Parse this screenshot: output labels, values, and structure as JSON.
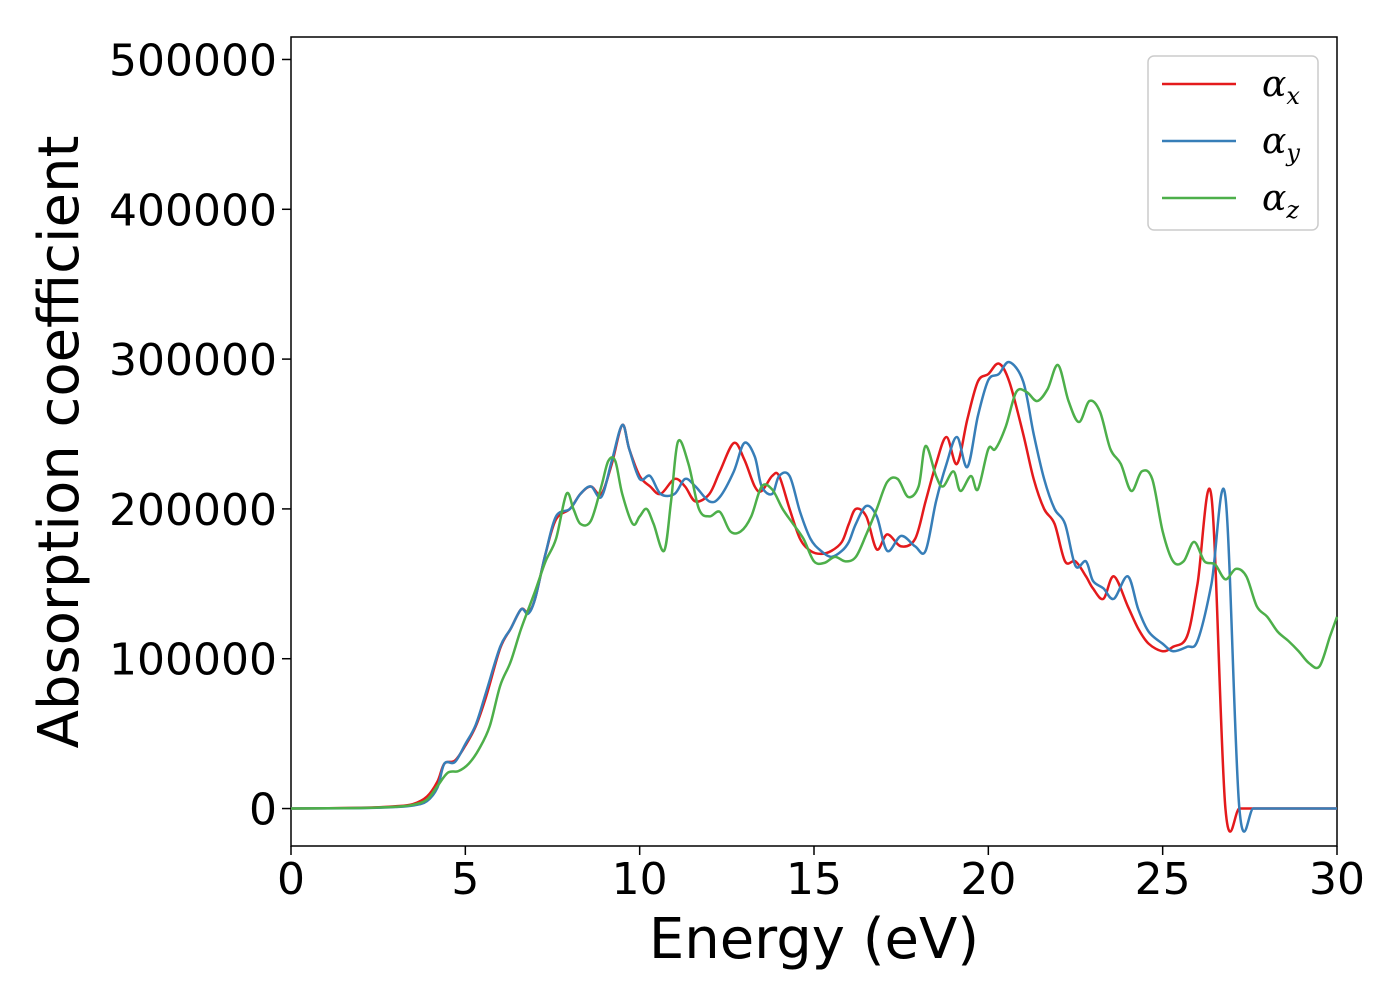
{
  "chart_data": {
    "type": "line",
    "xlabel": "Energy (eV)",
    "ylabel": "Absorption coefficient",
    "xlim": [
      0,
      30
    ],
    "ylim": [
      -25000,
      515000
    ],
    "xticks": [
      0,
      5,
      10,
      15,
      20,
      25,
      30
    ],
    "xtick_labels": [
      "0",
      "5",
      "10",
      "15",
      "20",
      "25",
      "30"
    ],
    "yticks": [
      0,
      100000,
      200000,
      300000,
      400000,
      500000
    ],
    "ytick_labels": [
      "0",
      "100000",
      "200000",
      "300000",
      "400000",
      "500000"
    ],
    "grid": false,
    "legend_position": "top-right",
    "colors": {
      "x": "#e41a1c",
      "y": "#377eb8",
      "z": "#4daf4a"
    },
    "series": [
      {
        "name": "α",
        "subscript": "x",
        "color": "#e41a1c",
        "x": [
          0,
          2,
          3,
          3.5,
          3.9,
          4.2,
          4.4,
          4.7,
          5,
          5.3,
          5.6,
          6,
          6.3,
          6.6,
          6.8,
          7,
          7.3,
          7.6,
          8,
          8.3,
          8.6,
          8.9,
          9.2,
          9.5,
          9.7,
          10,
          10.3,
          10.6,
          11,
          11.3,
          11.6,
          12,
          12.3,
          12.7,
          13,
          13.3,
          13.5,
          13.8,
          14,
          14.3,
          14.6,
          14.9,
          15.2,
          15.5,
          15.8,
          16,
          16.2,
          16.5,
          16.8,
          17.1,
          17.5,
          17.9,
          18.2,
          18.5,
          18.8,
          19.1,
          19.4,
          19.7,
          20,
          20.3,
          20.6,
          21,
          21.3,
          21.6,
          21.9,
          22.2,
          22.5,
          22.8,
          23,
          23.3,
          23.6,
          24,
          24.3,
          24.6,
          25,
          25.3,
          25.7,
          26,
          26.4,
          26.8,
          27.2,
          27.6,
          28,
          28.4,
          28.7,
          29,
          29.3,
          29.6,
          29.8,
          30
        ],
        "values": [
          0,
          500,
          1500,
          3000,
          8000,
          18000,
          30000,
          32000,
          42000,
          55000,
          75000,
          107000,
          120000,
          133000,
          131000,
          140000,
          170000,
          193000,
          200000,
          210000,
          215000,
          210000,
          230000,
          256000,
          240000,
          222000,
          215000,
          210000,
          220000,
          215000,
          205000,
          210000,
          225000,
          244000,
          233000,
          215000,
          212000,
          222000,
          222000,
          200000,
          180000,
          172000,
          170000,
          172000,
          178000,
          190000,
          200000,
          195000,
          173000,
          183000,
          175000,
          180000,
          205000,
          230000,
          248000,
          230000,
          260000,
          285000,
          290000,
          297000,
          285000,
          250000,
          220000,
          200000,
          190000,
          165000,
          165000,
          155000,
          147000,
          140000,
          155000,
          135000,
          120000,
          110000,
          105000,
          108000,
          115000,
          150000,
          208000,
          0,
          0,
          0,
          0,
          0,
          0,
          0,
          0,
          0,
          0,
          0
        ]
      },
      {
        "name": "α",
        "subscript": "y",
        "color": "#377eb8",
        "x": [
          0,
          2,
          3,
          3.5,
          3.9,
          4.2,
          4.4,
          4.7,
          5,
          5.3,
          5.6,
          6,
          6.3,
          6.6,
          6.8,
          7,
          7.3,
          7.6,
          8,
          8.3,
          8.6,
          8.9,
          9.2,
          9.5,
          9.7,
          10,
          10.3,
          10.6,
          11,
          11.3,
          11.6,
          12,
          12.3,
          12.7,
          13,
          13.3,
          13.5,
          13.8,
          14,
          14.3,
          14.6,
          14.9,
          15.2,
          15.5,
          15.8,
          16,
          16.2,
          16.5,
          16.8,
          17.1,
          17.5,
          17.9,
          18.2,
          18.5,
          18.8,
          19.1,
          19.4,
          19.7,
          20,
          20.3,
          20.6,
          21,
          21.3,
          21.6,
          21.9,
          22.2,
          22.5,
          22.8,
          23,
          23.3,
          23.6,
          24,
          24.3,
          24.6,
          25,
          25.3,
          25.7,
          26,
          26.4,
          26.8,
          27.2,
          27.6,
          28,
          28.4,
          28.7,
          29,
          29.3,
          29.6,
          29.8,
          30
        ],
        "values": [
          0,
          300,
          1000,
          2000,
          5000,
          14000,
          30000,
          31000,
          43000,
          56000,
          78000,
          108000,
          120000,
          133000,
          130000,
          140000,
          170000,
          195000,
          200000,
          210000,
          215000,
          208000,
          232000,
          256000,
          240000,
          220000,
          222000,
          210000,
          210000,
          220000,
          215000,
          205000,
          208000,
          225000,
          244000,
          235000,
          215000,
          210000,
          222000,
          222000,
          198000,
          180000,
          172000,
          168000,
          172000,
          178000,
          190000,
          202000,
          195000,
          172000,
          182000,
          175000,
          172000,
          205000,
          230000,
          248000,
          228000,
          262000,
          286000,
          290000,
          298000,
          285000,
          250000,
          220000,
          200000,
          190000,
          162000,
          165000,
          152000,
          147000,
          140000,
          155000,
          133000,
          118000,
          110000,
          105000,
          108000,
          112000,
          150000,
          208000,
          0,
          0,
          0,
          0,
          0,
          0,
          0,
          0,
          0,
          0
        ]
      },
      {
        "name": "α",
        "subscript": "z",
        "color": "#4daf4a",
        "x": [
          0,
          2,
          3,
          3.5,
          3.9,
          4.2,
          4.5,
          4.8,
          5.1,
          5.4,
          5.7,
          6,
          6.3,
          6.6,
          7,
          7.3,
          7.6,
          7.9,
          8.1,
          8.3,
          8.6,
          8.9,
          9.1,
          9.3,
          9.5,
          9.8,
          10,
          10.2,
          10.4,
          10.7,
          10.9,
          11.1,
          11.4,
          11.7,
          12,
          12.3,
          12.6,
          12.9,
          13.2,
          13.5,
          13.8,
          14.1,
          14.4,
          14.7,
          15,
          15.3,
          15.6,
          15.9,
          16.2,
          16.5,
          16.8,
          17.1,
          17.4,
          17.7,
          18,
          18.2,
          18.5,
          18.7,
          19,
          19.2,
          19.5,
          19.7,
          20,
          20.2,
          20.5,
          20.8,
          21.1,
          21.4,
          21.7,
          22,
          22.3,
          22.6,
          22.9,
          23.2,
          23.5,
          23.8,
          24.1,
          24.4,
          24.7,
          25,
          25.3,
          25.6,
          25.9,
          26.2,
          26.5,
          26.8,
          27.1,
          27.4,
          27.7,
          28,
          28.3,
          28.6,
          28.9,
          29.2,
          29.5,
          29.8,
          30
        ],
        "values": [
          0,
          400,
          1200,
          2500,
          6000,
          15000,
          24000,
          25000,
          30000,
          40000,
          55000,
          82000,
          98000,
          120000,
          145000,
          165000,
          180000,
          210000,
          200000,
          190000,
          192000,
          215000,
          232000,
          232000,
          210000,
          190000,
          195000,
          200000,
          190000,
          172000,
          205000,
          245000,
          230000,
          200000,
          195000,
          198000,
          185000,
          185000,
          195000,
          215000,
          213000,
          200000,
          190000,
          180000,
          165000,
          164000,
          168000,
          165000,
          168000,
          183000,
          200000,
          218000,
          220000,
          208000,
          215000,
          242000,
          222000,
          215000,
          225000,
          212000,
          222000,
          213000,
          240000,
          240000,
          255000,
          278000,
          278000,
          272000,
          280000,
          296000,
          272000,
          258000,
          272000,
          265000,
          240000,
          230000,
          212000,
          225000,
          220000,
          185000,
          165000,
          165000,
          178000,
          165000,
          163000,
          153000,
          160000,
          155000,
          135000,
          128000,
          118000,
          112000,
          105000,
          97000,
          95000,
          115000,
          128000
        ]
      }
    ]
  }
}
